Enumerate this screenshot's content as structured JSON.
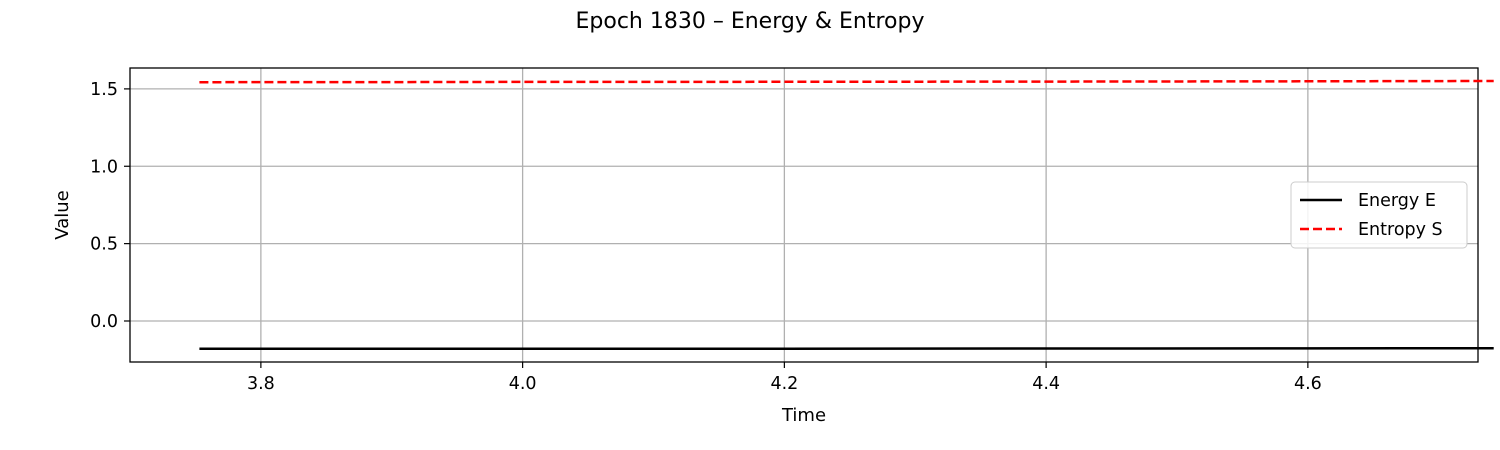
{
  "chart_data": {
    "type": "line",
    "title": "Epoch 1830 – Energy & Entropy",
    "xlabel": "Time",
    "ylabel": "Value",
    "xlim": [
      3.7,
      4.73
    ],
    "ylim": [
      -0.265,
      1.635
    ],
    "xticks": [
      3.8,
      4.0,
      4.2,
      4.4,
      4.6
    ],
    "xtick_labels": [
      "3.8",
      "4.0",
      "4.2",
      "4.4",
      "4.6"
    ],
    "yticks": [
      0.0,
      0.5,
      1.0,
      1.5
    ],
    "ytick_labels": [
      "0.0",
      "0.5",
      "1.0",
      "1.5"
    ],
    "grid": true,
    "legend_position": "center-right",
    "series": [
      {
        "name": "Energy E",
        "color": "#000000",
        "style": "solid",
        "x": [
          3.753,
          3.9,
          4.0,
          4.2,
          4.4,
          4.6,
          4.742
        ],
        "y": [
          -0.18,
          -0.18,
          -0.18,
          -0.179,
          -0.178,
          -0.177,
          -0.176
        ]
      },
      {
        "name": "Entropy S",
        "color": "#ff0000",
        "style": "dashed",
        "x": [
          3.753,
          3.9,
          4.0,
          4.2,
          4.4,
          4.6,
          4.742
        ],
        "y": [
          1.543,
          1.544,
          1.545,
          1.546,
          1.547,
          1.549,
          1.551
        ]
      }
    ]
  }
}
